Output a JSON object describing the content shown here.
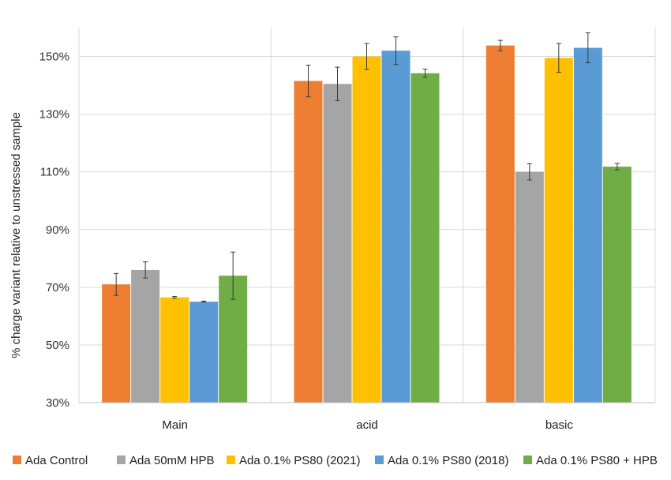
{
  "chart_data": {
    "type": "bar",
    "title": "",
    "xlabel": "",
    "ylabel": "% charge variant relative to unstressed sample",
    "ylim": [
      30,
      160
    ],
    "yticks": [
      30,
      50,
      70,
      90,
      110,
      130,
      150
    ],
    "ytick_labels": [
      "30%",
      "50%",
      "70%",
      "90%",
      "110%",
      "130%",
      "150%"
    ],
    "categories": [
      "Main",
      "acid",
      "basic"
    ],
    "grid": true,
    "legend_position": "bottom",
    "series": [
      {
        "name": "Ada Control",
        "color": "#ED7D31",
        "values": [
          71,
          141.5,
          153.8
        ],
        "errors": [
          3.8,
          5.5,
          1.8
        ]
      },
      {
        "name": "Ada 50mM HPB",
        "color": "#A5A5A5",
        "values": [
          76,
          140.5,
          110
        ],
        "errors": [
          2.8,
          5.8,
          2.8
        ]
      },
      {
        "name": "Ada 0.1% PS80 (2021)",
        "color": "#FFC000",
        "values": [
          66.5,
          150,
          149.5
        ],
        "errors": [
          0.3,
          4.5,
          5
        ]
      },
      {
        "name": "Ada 0.1% PS80 (2018)",
        "color": "#5B9BD5",
        "values": [
          65,
          152,
          153
        ],
        "errors": [
          0.2,
          4.8,
          5.2
        ]
      },
      {
        "name": "Ada 0.1% PS80 + HPB",
        "color": "#70AD47",
        "values": [
          74,
          144.2,
          111.8
        ],
        "errors": [
          8.2,
          1.4,
          1.1
        ]
      }
    ]
  }
}
